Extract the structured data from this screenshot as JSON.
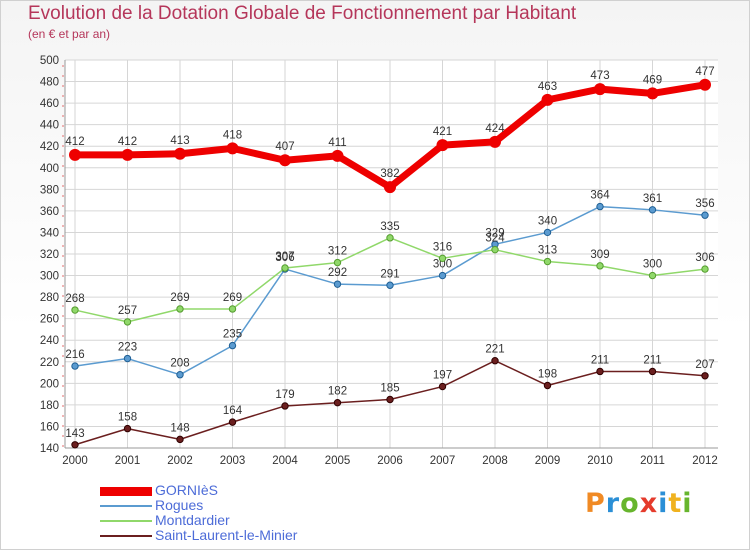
{
  "header": {
    "title": "Evolution de la Dotation Globale de Fonctionnement par Habitant",
    "subtitle": "(en € et par an)"
  },
  "logo": {
    "text": "Proxiti",
    "letter_colors": [
      "#f08a24",
      "#2b8fd6",
      "#67b52d",
      "#e53b2c",
      "#2b8fd6",
      "#f0b21f",
      "#67b52d"
    ]
  },
  "chart_data": {
    "type": "line",
    "x": [
      "2000",
      "2001",
      "2002",
      "2003",
      "2004",
      "2005",
      "2006",
      "2007",
      "2008",
      "2009",
      "2010",
      "2011",
      "2012"
    ],
    "ylim": [
      140,
      500
    ],
    "yticks": [
      140,
      160,
      180,
      200,
      220,
      240,
      260,
      280,
      300,
      320,
      340,
      360,
      380,
      400,
      420,
      440,
      460,
      480,
      500
    ],
    "grid": true,
    "legend_position": "bottom-left",
    "series": [
      {
        "name": "GORNIèS",
        "color": "#ee0000",
        "width": 7,
        "marker": 6,
        "values": [
          412,
          412,
          413,
          418,
          407,
          411,
          382,
          421,
          424,
          463,
          473,
          469,
          477
        ]
      },
      {
        "name": "Rogues",
        "color": "#5b9bd0",
        "width": 1.5,
        "marker": 3.2,
        "values": [
          216,
          223,
          208,
          235,
          306,
          292,
          291,
          300,
          329,
          340,
          364,
          361,
          356
        ]
      },
      {
        "name": "Montdardier",
        "color": "#90d86a",
        "width": 1.5,
        "marker": 3.2,
        "values": [
          268,
          257,
          269,
          269,
          307,
          312,
          335,
          316,
          324,
          313,
          309,
          300,
          306
        ]
      },
      {
        "name": "Saint-Laurent-le-Minier",
        "color": "#6b1f1f",
        "width": 1.5,
        "marker": 3.2,
        "values": [
          143,
          158,
          148,
          164,
          179,
          182,
          185,
          197,
          221,
          198,
          211,
          211,
          207
        ]
      }
    ]
  }
}
